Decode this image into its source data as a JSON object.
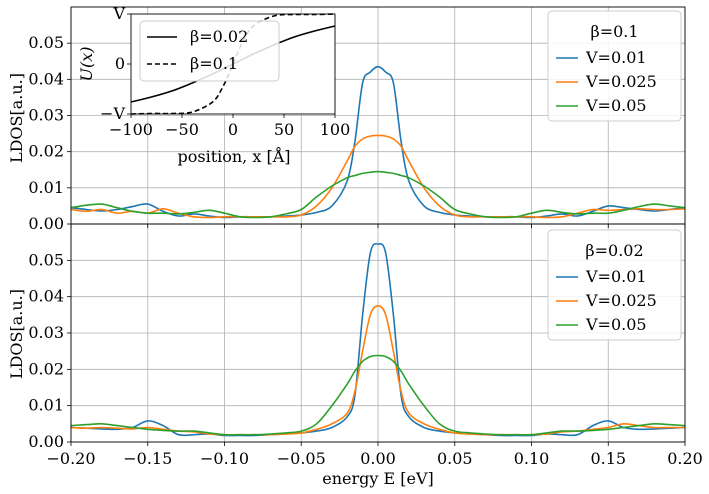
{
  "chart_data": [
    {
      "type": "line",
      "panel": "top",
      "legend_title": "β=0.1",
      "legend_position": "upper right",
      "xlabel": "",
      "ylabel": "LDOS[a.u.]",
      "xlim": [
        -0.2,
        0.2
      ],
      "ylim": [
        0.0,
        0.06
      ],
      "yticks": [
        "0.00",
        "0.01",
        "0.02",
        "0.03",
        "0.04",
        "0.05"
      ],
      "grid": true,
      "x": [
        -0.2,
        -0.19,
        -0.18,
        -0.17,
        -0.16,
        -0.15,
        -0.14,
        -0.13,
        -0.12,
        -0.11,
        -0.1,
        -0.09,
        -0.08,
        -0.07,
        -0.06,
        -0.05,
        -0.04,
        -0.03,
        -0.02,
        -0.015,
        -0.01,
        -0.005,
        0.0,
        0.005,
        0.01,
        0.015,
        0.02,
        0.03,
        0.04,
        0.05,
        0.06,
        0.07,
        0.08,
        0.09,
        0.1,
        0.11,
        0.12,
        0.13,
        0.14,
        0.15,
        0.16,
        0.17,
        0.18,
        0.19,
        0.2
      ],
      "series": [
        {
          "name": "V=0.01",
          "color": "#1f77b4",
          "values": [
            0.0045,
            0.004,
            0.0036,
            0.004,
            0.0048,
            0.0055,
            0.0035,
            0.0022,
            0.0028,
            0.0022,
            0.0018,
            0.002,
            0.002,
            0.002,
            0.0022,
            0.0025,
            0.0032,
            0.005,
            0.012,
            0.023,
            0.039,
            0.042,
            0.0435,
            0.042,
            0.039,
            0.023,
            0.012,
            0.005,
            0.0032,
            0.0025,
            0.0022,
            0.002,
            0.002,
            0.002,
            0.0018,
            0.0022,
            0.0028,
            0.0022,
            0.0035,
            0.005,
            0.0045,
            0.004,
            0.0036,
            0.004,
            0.0045
          ]
        },
        {
          "name": "V=0.025",
          "color": "#ff7f0e",
          "values": [
            0.004,
            0.0035,
            0.004,
            0.003,
            0.0035,
            0.003,
            0.0042,
            0.003,
            0.002,
            0.0018,
            0.002,
            0.002,
            0.002,
            0.002,
            0.002,
            0.0025,
            0.005,
            0.01,
            0.0175,
            0.0215,
            0.0235,
            0.0243,
            0.0245,
            0.0243,
            0.0235,
            0.0215,
            0.0175,
            0.01,
            0.005,
            0.0025,
            0.002,
            0.002,
            0.002,
            0.002,
            0.002,
            0.0018,
            0.002,
            0.003,
            0.004,
            0.0038,
            0.004,
            0.0042,
            0.004,
            0.004,
            0.0042
          ]
        },
        {
          "name": "V=0.05",
          "color": "#2ca02c",
          "values": [
            0.0045,
            0.0052,
            0.0055,
            0.0045,
            0.0035,
            0.003,
            0.003,
            0.0028,
            0.0032,
            0.0038,
            0.003,
            0.002,
            0.0018,
            0.002,
            0.0028,
            0.004,
            0.0075,
            0.0105,
            0.0128,
            0.0134,
            0.014,
            0.0143,
            0.0145,
            0.0143,
            0.014,
            0.0134,
            0.0128,
            0.0105,
            0.0075,
            0.004,
            0.0028,
            0.002,
            0.0018,
            0.002,
            0.003,
            0.0038,
            0.0032,
            0.0028,
            0.003,
            0.003,
            0.0038,
            0.0048,
            0.0055,
            0.005,
            0.0045
          ]
        }
      ]
    },
    {
      "type": "line",
      "panel": "bottom",
      "legend_title": "β=0.02",
      "legend_position": "upper right",
      "xlabel": "energy E [eV]",
      "ylabel": "LDOS[a.u.]",
      "xlim": [
        -0.2,
        0.2
      ],
      "ylim": [
        0.0,
        0.06
      ],
      "xticks": [
        "−0.20",
        "−0.15",
        "−0.10",
        "−0.05",
        "0.00",
        "0.05",
        "0.10",
        "0.15",
        "0.20"
      ],
      "yticks": [
        "0.00",
        "0.01",
        "0.02",
        "0.03",
        "0.04",
        "0.05"
      ],
      "grid": true,
      "x": [
        -0.2,
        -0.19,
        -0.18,
        -0.17,
        -0.16,
        -0.15,
        -0.14,
        -0.13,
        -0.12,
        -0.11,
        -0.1,
        -0.09,
        -0.08,
        -0.07,
        -0.06,
        -0.05,
        -0.04,
        -0.03,
        -0.02,
        -0.015,
        -0.01,
        -0.005,
        0.0,
        0.005,
        0.01,
        0.015,
        0.02,
        0.03,
        0.04,
        0.05,
        0.06,
        0.07,
        0.08,
        0.09,
        0.1,
        0.11,
        0.12,
        0.13,
        0.14,
        0.15,
        0.16,
        0.17,
        0.18,
        0.19,
        0.2
      ],
      "series": [
        {
          "name": "V=0.01",
          "color": "#1f77b4",
          "values": [
            0.004,
            0.0038,
            0.0036,
            0.0035,
            0.004,
            0.0058,
            0.0045,
            0.002,
            0.002,
            0.0022,
            0.0018,
            0.0018,
            0.0018,
            0.002,
            0.0022,
            0.0025,
            0.003,
            0.004,
            0.007,
            0.013,
            0.035,
            0.052,
            0.0545,
            0.052,
            0.035,
            0.013,
            0.007,
            0.004,
            0.003,
            0.0025,
            0.0022,
            0.002,
            0.0018,
            0.0018,
            0.0018,
            0.0022,
            0.002,
            0.002,
            0.0045,
            0.0058,
            0.004,
            0.0035,
            0.0036,
            0.0038,
            0.004
          ]
        },
        {
          "name": "V=0.025",
          "color": "#ff7f0e",
          "values": [
            0.004,
            0.0038,
            0.004,
            0.0038,
            0.0036,
            0.004,
            0.0035,
            0.003,
            0.0028,
            0.0022,
            0.002,
            0.002,
            0.002,
            0.002,
            0.0022,
            0.0025,
            0.0035,
            0.005,
            0.008,
            0.014,
            0.025,
            0.035,
            0.0375,
            0.035,
            0.025,
            0.014,
            0.008,
            0.005,
            0.0035,
            0.0025,
            0.0022,
            0.002,
            0.002,
            0.002,
            0.002,
            0.0022,
            0.0028,
            0.003,
            0.0035,
            0.004,
            0.005,
            0.0045,
            0.004,
            0.004,
            0.004
          ]
        },
        {
          "name": "V=0.05",
          "color": "#2ca02c",
          "values": [
            0.0045,
            0.0048,
            0.005,
            0.0045,
            0.004,
            0.0035,
            0.0032,
            0.003,
            0.003,
            0.0025,
            0.002,
            0.002,
            0.002,
            0.0022,
            0.0025,
            0.003,
            0.005,
            0.01,
            0.016,
            0.0195,
            0.0222,
            0.0235,
            0.0238,
            0.0235,
            0.0222,
            0.0195,
            0.016,
            0.01,
            0.005,
            0.003,
            0.0025,
            0.0022,
            0.002,
            0.002,
            0.002,
            0.0025,
            0.003,
            0.003,
            0.0032,
            0.0035,
            0.004,
            0.0045,
            0.005,
            0.0048,
            0.0045
          ]
        }
      ]
    },
    {
      "type": "line",
      "panel": "inset",
      "xlabel": "position, x [Å]",
      "ylabel": "U(x)",
      "xlim": [
        -100,
        100
      ],
      "ylim": [
        -1,
        1
      ],
      "xticks": [
        "−100",
        "−50",
        "0",
        "50",
        "100"
      ],
      "yticks": [
        "−V",
        "0",
        "V"
      ],
      "grid": false,
      "legend_position": "upper left",
      "x": [
        -100,
        -80,
        -60,
        -40,
        -20,
        -10,
        0,
        10,
        20,
        40,
        60,
        80,
        100
      ],
      "series": [
        {
          "name": "β=0.02",
          "color": "#000000",
          "dash": "solid",
          "values": [
            -0.76,
            -0.66,
            -0.54,
            -0.38,
            -0.2,
            -0.1,
            0.0,
            0.1,
            0.2,
            0.38,
            0.54,
            0.66,
            0.76
          ]
        },
        {
          "name": "β=0.1",
          "color": "#000000",
          "dash": "dashed",
          "values": [
            -1.0,
            -0.99,
            -0.99,
            -0.96,
            -0.76,
            -0.46,
            0.0,
            0.46,
            0.76,
            0.96,
            0.99,
            0.99,
            1.0
          ]
        }
      ]
    }
  ]
}
